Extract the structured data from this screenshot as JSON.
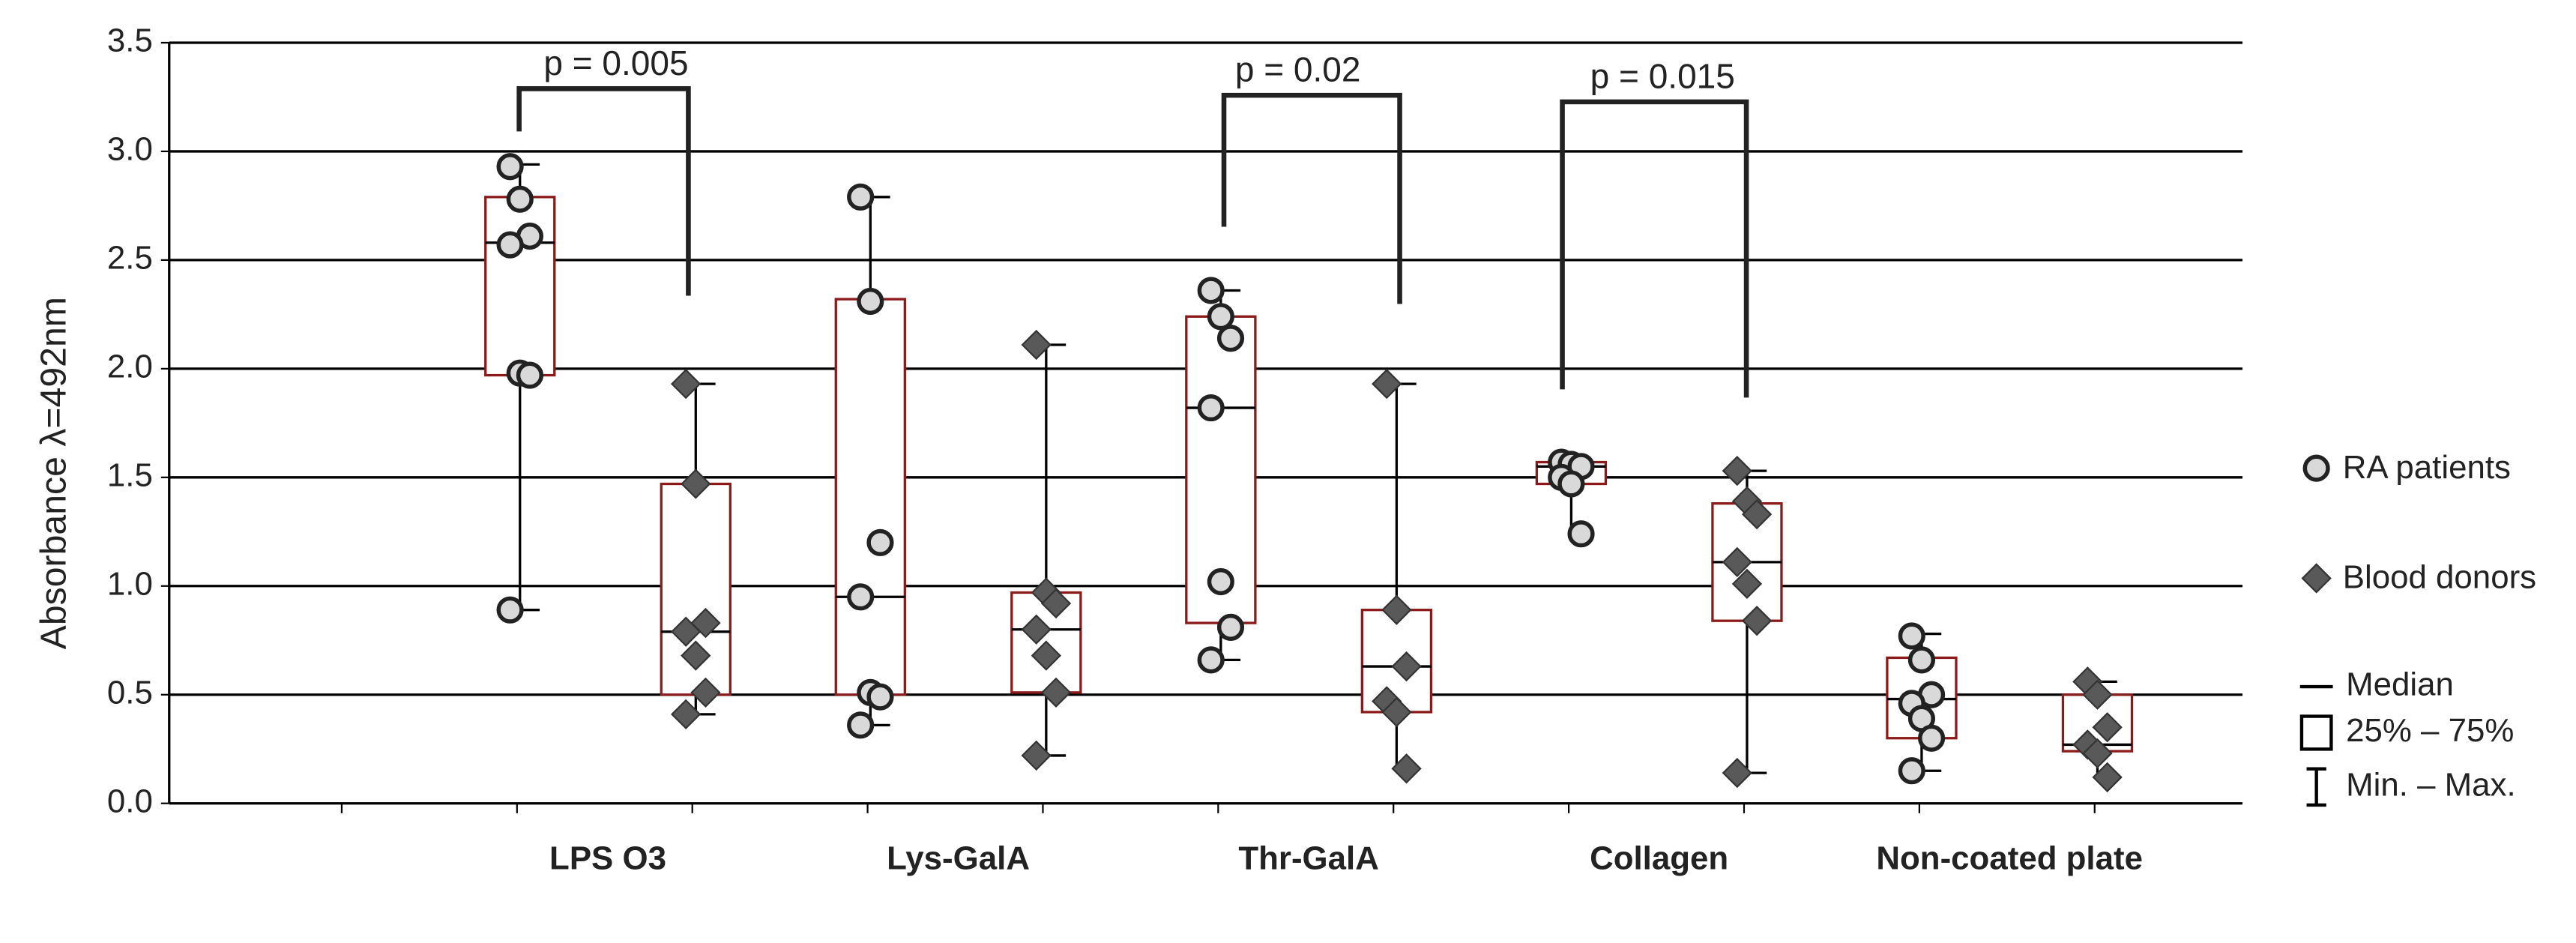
{
  "chart_data": {
    "type": "box",
    "y_label": "Absorbance λ=492nm",
    "ylim": [
      0,
      3.5
    ],
    "yticks": [
      {
        "value": 0,
        "label": "0.0"
      },
      0.5,
      {
        "value": 1,
        "label": "1.0"
      },
      1.5,
      {
        "value": 2,
        "label": "2.0"
      },
      2.5,
      {
        "value": 3,
        "label": "3.0"
      },
      3.5
    ],
    "grid": true,
    "box_color": "#8b1a1a",
    "categories": [
      "LPS O3",
      "Lys-GalA",
      "Thr-GalA",
      "Collagen",
      "Non-coated plate"
    ],
    "series": [
      {
        "name": "RA patients",
        "color": "#d9d9d9",
        "marker": "circle",
        "stats": [
          {
            "min": 0.89,
            "q1": 1.97,
            "median": 2.58,
            "q3": 2.79,
            "max": 2.94,
            "points": [
              2.93,
              2.78,
              2.61,
              2.57,
              1.98,
              1.97,
              0.89
            ]
          },
          {
            "min": 0.36,
            "q1": 0.5,
            "median": 0.95,
            "q3": 2.32,
            "max": 2.79,
            "points": [
              2.79,
              2.31,
              1.2,
              0.95,
              0.51,
              0.49,
              0.36
            ]
          },
          {
            "min": 0.66,
            "q1": 0.83,
            "median": 1.82,
            "q3": 2.24,
            "max": 2.36,
            "points": [
              2.36,
              2.24,
              2.14,
              1.82,
              1.02,
              0.81,
              0.66
            ]
          },
          {
            "min": 1.24,
            "q1": 1.47,
            "median": 1.55,
            "q3": 1.57,
            "max": 1.58,
            "points": [
              1.57,
              1.56,
              1.55,
              1.5,
              1.47,
              1.24
            ]
          },
          {
            "min": 0.15,
            "q1": 0.3,
            "median": 0.48,
            "q3": 0.67,
            "max": 0.78,
            "points": [
              0.77,
              0.66,
              0.5,
              0.46,
              0.39,
              0.3,
              0.15
            ]
          }
        ]
      },
      {
        "name": "Blood donors",
        "color": "#595959",
        "marker": "diamond",
        "stats": [
          {
            "min": 0.41,
            "q1": 0.5,
            "median": 0.79,
            "q3": 1.47,
            "max": 1.93,
            "points": [
              1.93,
              1.47,
              0.83,
              0.79,
              0.68,
              0.51,
              0.41
            ]
          },
          {
            "min": 0.22,
            "q1": 0.51,
            "median": 0.8,
            "q3": 0.97,
            "max": 2.11,
            "points": [
              2.11,
              0.97,
              0.92,
              0.8,
              0.68,
              0.51,
              0.22
            ]
          },
          {
            "min": 0.16,
            "q1": 0.42,
            "median": 0.63,
            "q3": 0.89,
            "max": 1.93,
            "points": [
              1.93,
              0.89,
              0.63,
              0.47,
              0.42,
              0.16
            ]
          },
          {
            "min": 0.14,
            "q1": 0.84,
            "median": 1.11,
            "q3": 1.38,
            "max": 1.53,
            "points": [
              1.53,
              1.39,
              1.33,
              1.11,
              1.01,
              0.84,
              0.14
            ]
          },
          {
            "min": 0.12,
            "q1": 0.24,
            "median": 0.27,
            "q3": 0.5,
            "max": 0.56,
            "points": [
              0.56,
              0.5,
              0.35,
              0.27,
              0.23,
              0.12
            ]
          }
        ]
      }
    ],
    "annotations": [
      {
        "text": "p = 0.005"
      },
      {
        "text": "p = 0.02"
      },
      {
        "text": "p = 0.015"
      }
    ],
    "legend": {
      "position": "right",
      "items": [
        "Median",
        "25% – 75%",
        "Min. – Max."
      ]
    }
  }
}
